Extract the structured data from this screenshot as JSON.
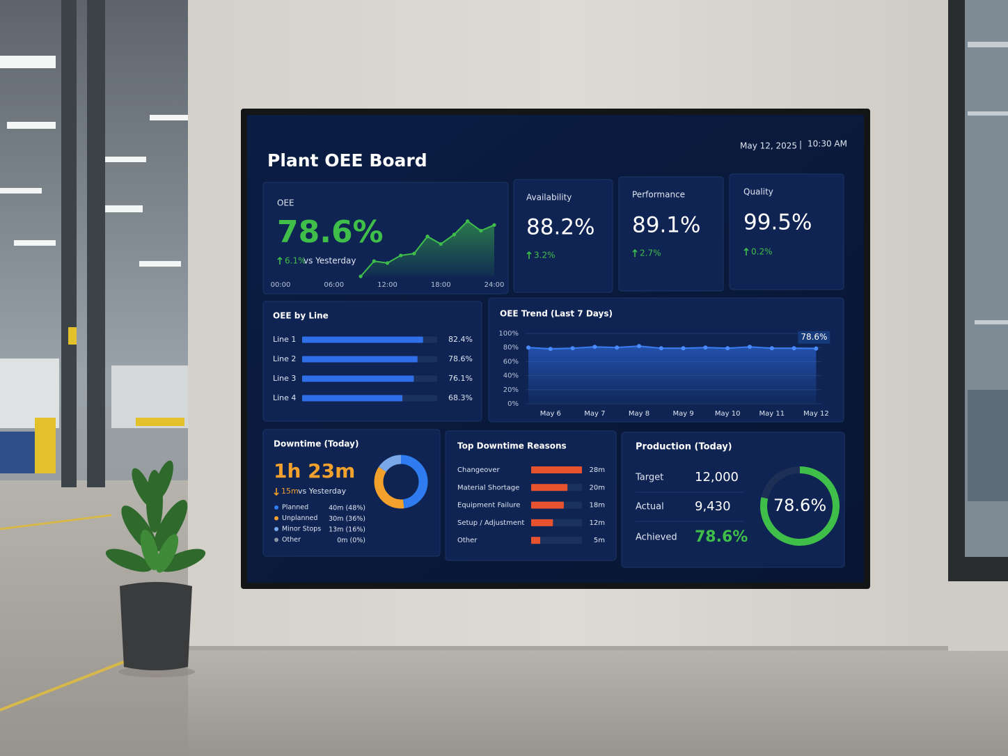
{
  "header": {
    "title": "Plant OEE Board",
    "date": "May 12, 2025",
    "separator": "|",
    "time": "10:30 AM"
  },
  "kpis": [
    {
      "label": "OEE",
      "value": "78.6%",
      "delta": "6.1%",
      "comparison": "vs Yesterday"
    },
    {
      "label": "Availability",
      "value": "88.2%",
      "delta": "3.2%"
    },
    {
      "label": "Performance",
      "value": "89.1%",
      "delta": "2.7%"
    },
    {
      "label": "Quality",
      "value": "99.5%",
      "delta": "0.2%"
    }
  ],
  "downtime": {
    "total": "1h 23m",
    "delta": "15m",
    "comparison": "vs Yesterday"
  },
  "production": {
    "title": "Production (Today)",
    "rows": [
      {
        "label": "Target",
        "value": "12,000"
      },
      {
        "label": "Actual",
        "value": "9,430"
      },
      {
        "label": "Achieved",
        "value": "78.6%"
      }
    ]
  },
  "chart_data": [
    {
      "type": "area",
      "x": [
        9,
        10.5,
        12,
        13.5,
        15,
        16.5,
        18,
        19.5,
        21,
        22.5,
        24
      ],
      "values": [
        60,
        68,
        67,
        71,
        72,
        81,
        77,
        82,
        89,
        84,
        87
      ],
      "color": "#3fbf4a",
      "xlim": [
        0,
        24
      ],
      "xticks": [
        {
          "value": 0,
          "label": "00:00"
        },
        {
          "value": 6,
          "label": "06:00"
        },
        {
          "value": 12,
          "label": "12:00"
        },
        {
          "value": 18,
          "label": "18:00"
        },
        {
          "value": 24,
          "label": "24:00"
        }
      ],
      "ylim": [
        60,
        90
      ]
    },
    {
      "type": "bar",
      "orientation": "horizontal",
      "title": "OEE by Line",
      "categories": [
        "Line 1",
        "Line 2",
        "Line 3",
        "Line 4"
      ],
      "values": [
        82.4,
        78.6,
        76.1,
        68.3
      ],
      "value_labels": [
        "82.4%",
        "78.6%",
        "76.1%",
        "68.3%"
      ],
      "color": "#2f6fe8",
      "xlim": [
        0,
        92
      ]
    },
    {
      "type": "line",
      "title": "OEE Trend (Last 7 Days)",
      "categories": [
        null,
        "May 6",
        null,
        "May 7",
        null,
        "May 8",
        null,
        "May 9",
        null,
        "May 10",
        null,
        "May 11",
        null,
        "May 12"
      ],
      "values": [
        80,
        78,
        79,
        81,
        80,
        82,
        79,
        79,
        80,
        79,
        81,
        79,
        79,
        78.6
      ],
      "value_labels": [
        null,
        null,
        null,
        null,
        null,
        null,
        null,
        null,
        null,
        null,
        null,
        null,
        null,
        "78.6%"
      ],
      "color": "#3b7cf0",
      "ylim": [
        0,
        100
      ],
      "yticks": [
        {
          "value": 0,
          "label": "0%"
        },
        {
          "value": 20,
          "label": "20%"
        },
        {
          "value": 40,
          "label": "40%"
        },
        {
          "value": 60,
          "label": "60%"
        },
        {
          "value": 80,
          "label": "80%"
        },
        {
          "value": 100,
          "label": "100%"
        }
      ],
      "grid": true
    },
    {
      "type": "donut",
      "title": "Downtime (Today)",
      "categories": [
        "Planned",
        "Unplanned",
        "Minor Stops",
        "Other"
      ],
      "values": [
        40,
        30,
        13,
        0
      ],
      "value_labels": [
        "40m (48%)",
        "30m (36%)",
        "13m (16%)",
        "0m (0%)"
      ],
      "colors": [
        "#2f7cf0",
        "#f2a22c",
        "#7aa7e8",
        "#8a94a6"
      ]
    },
    {
      "type": "bar",
      "orientation": "horizontal",
      "title": "Top Downtime Reasons",
      "categories": [
        "Changeover",
        "Material Shortage",
        "Equipment Failure",
        "Setup / Adjustment",
        "Other"
      ],
      "values": [
        28,
        20,
        18,
        12,
        5
      ],
      "value_labels": [
        "28m",
        "20m",
        "18m",
        "12m",
        "5m"
      ],
      "color": "#e8532f",
      "xlim": [
        0,
        28
      ]
    },
    {
      "type": "gauge",
      "values": [
        78.6
      ],
      "value_labels": [
        "78.6%"
      ],
      "color": "#3fbf4a",
      "ylim": [
        0,
        100
      ]
    }
  ]
}
